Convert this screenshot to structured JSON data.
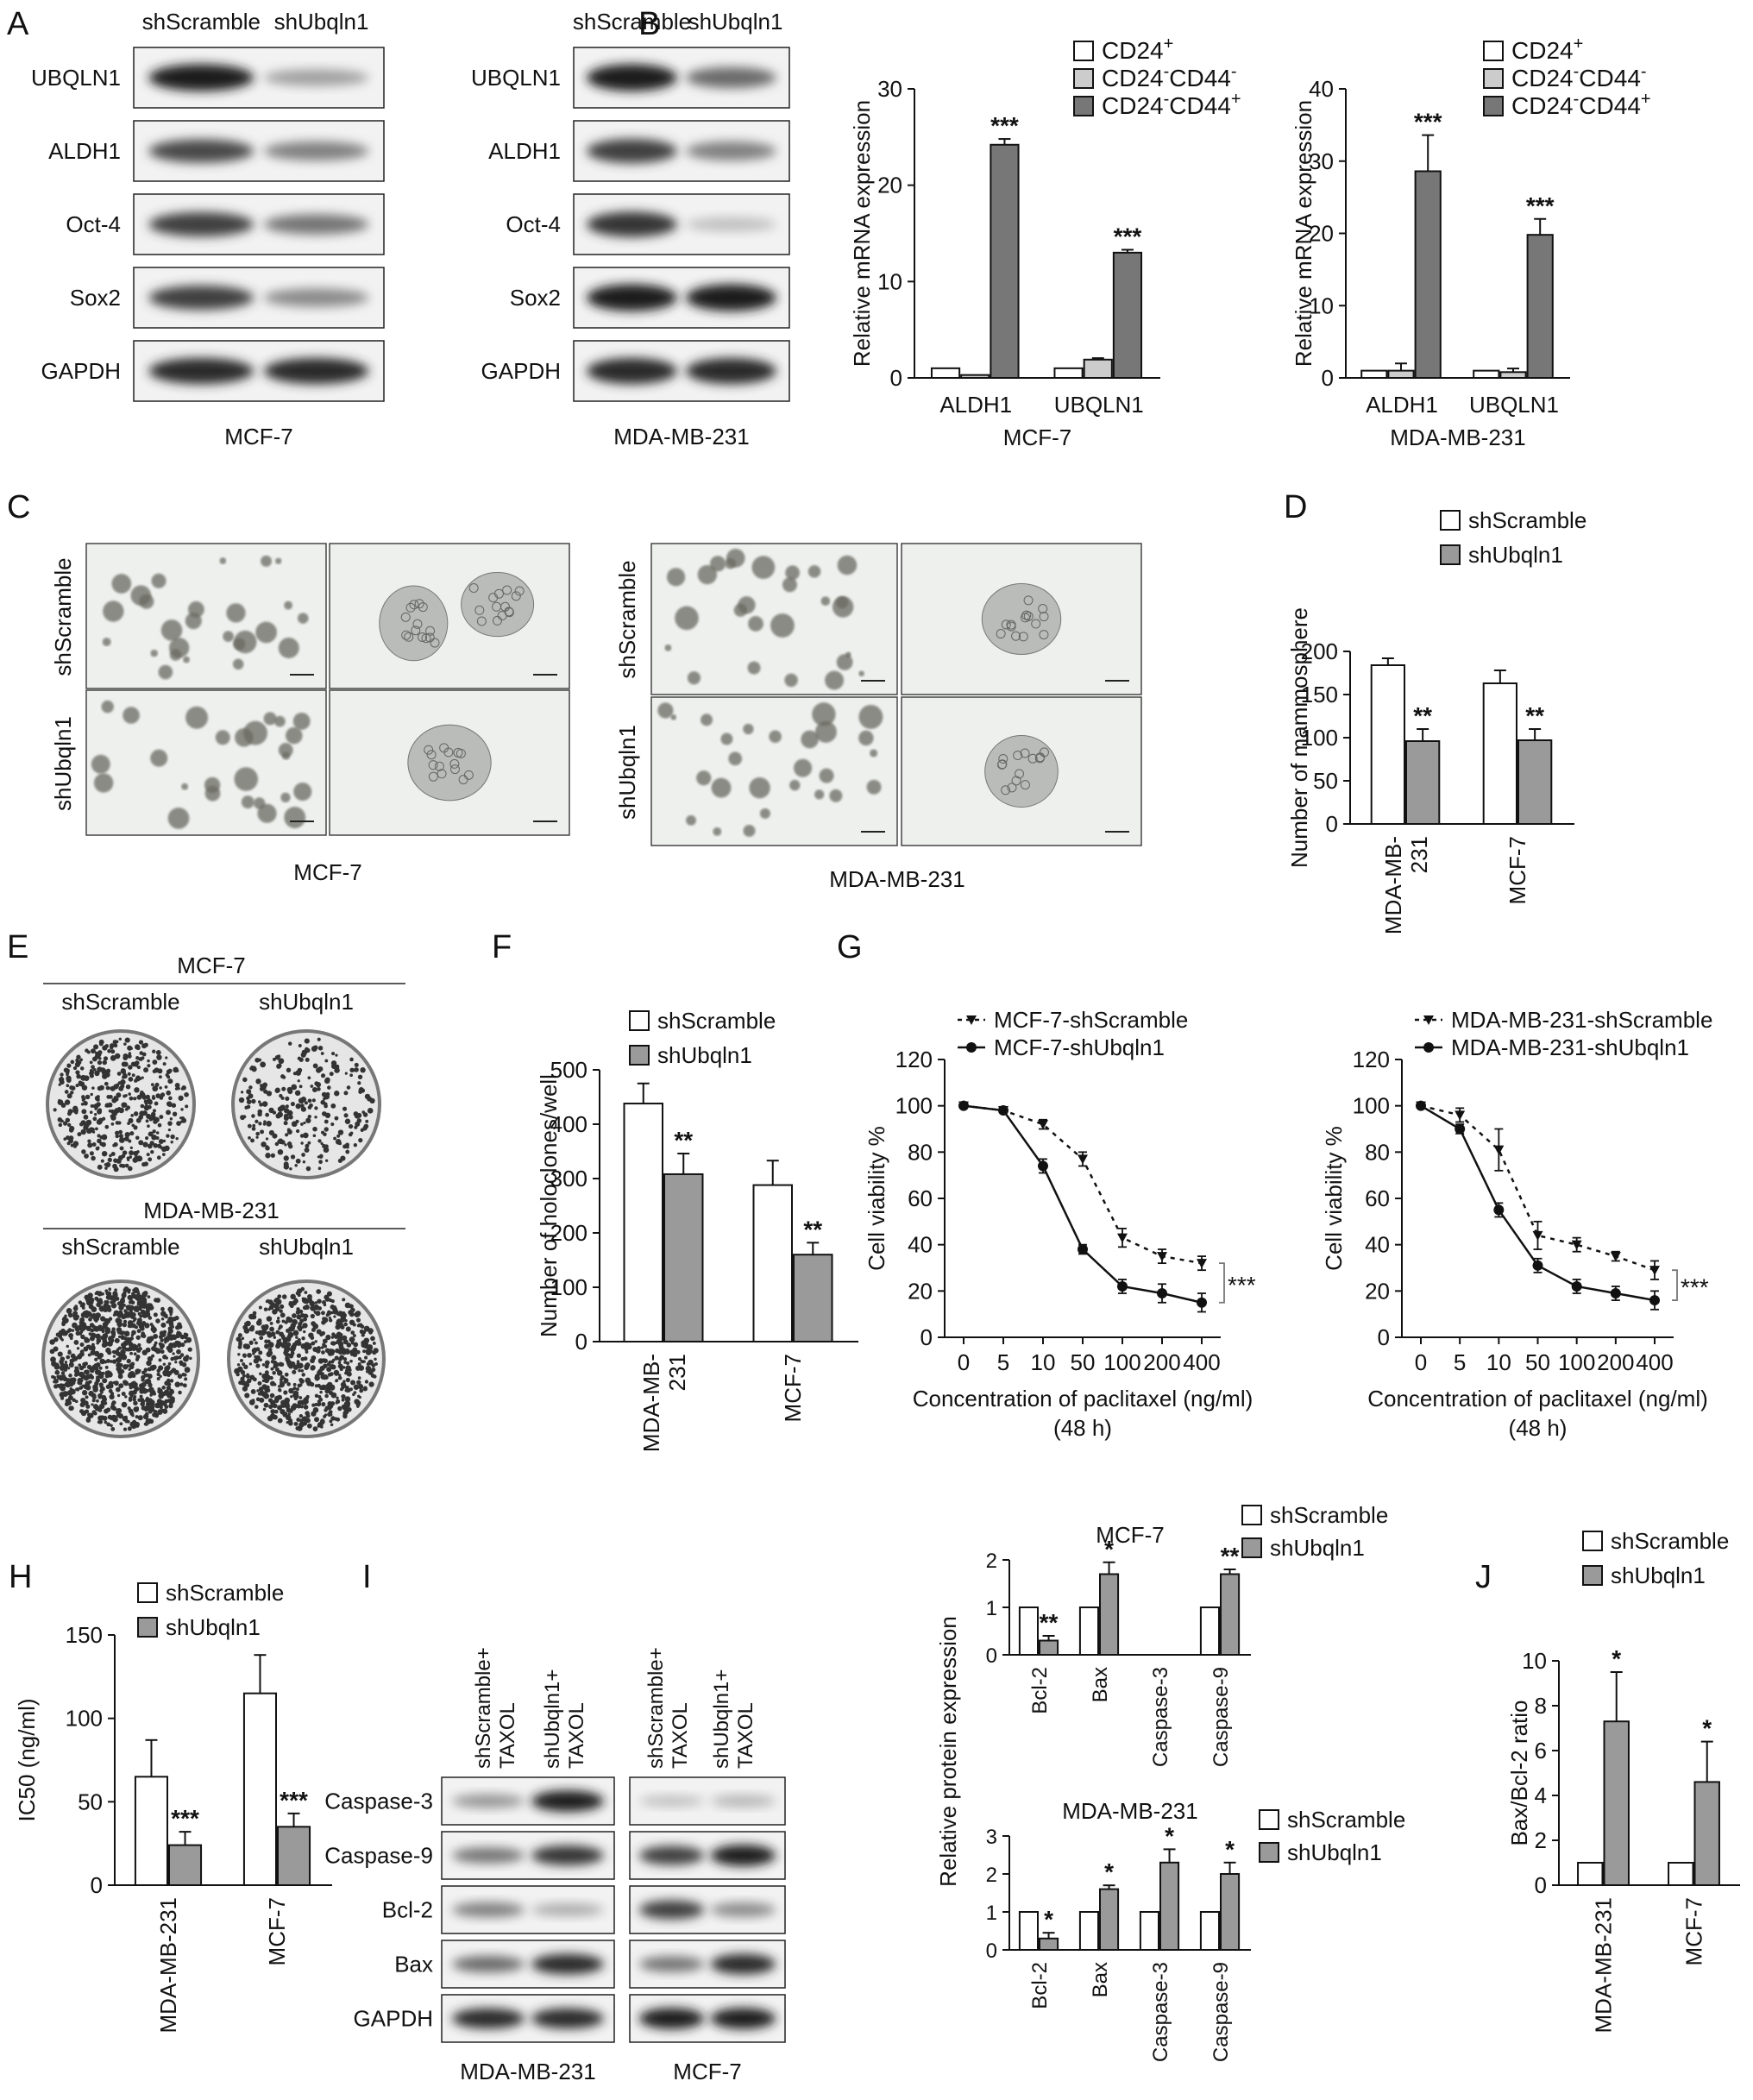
{
  "panel_letters": [
    "A",
    "B",
    "C",
    "D",
    "E",
    "F",
    "G",
    "H",
    "I",
    "J"
  ],
  "panel_A": {
    "lane_labels": [
      "shScramble",
      "shUbqln1"
    ],
    "rows": [
      "UBQLN1",
      "ALDH1",
      "Oct-4",
      "Sox2",
      "GAPDH"
    ],
    "blots": [
      {
        "cell_line": "MCF-7",
        "row_intensity": [
          [
            0.95,
            0.35
          ],
          [
            0.75,
            0.5
          ],
          [
            0.8,
            0.55
          ],
          [
            0.8,
            0.45
          ],
          [
            0.9,
            0.9
          ]
        ]
      },
      {
        "cell_line": "MDA-MB-231",
        "row_intensity": [
          [
            0.95,
            0.6
          ],
          [
            0.8,
            0.5
          ],
          [
            0.85,
            0.2
          ],
          [
            0.95,
            0.95
          ],
          [
            0.9,
            0.9
          ]
        ]
      }
    ]
  },
  "panel_C": {
    "row_labels": [
      "shScramble",
      "shUbqln1"
    ],
    "cell_lines": [
      "MCF-7",
      "MDA-MB-231"
    ]
  },
  "panel_E": {
    "groups": [
      {
        "title": "MCF-7",
        "lanes": [
          "shScramble",
          "shUbqln1"
        ]
      },
      {
        "title": "MDA-MB-231",
        "lanes": [
          "shScramble",
          "shUbqln1"
        ]
      }
    ]
  },
  "panel_I": {
    "lane_labels": [
      "shScramble+ TAXOL",
      "shUbqln1+ TAXOL",
      "shScramble+ TAXOL",
      "shUbqln1+ TAXOL"
    ],
    "rows": [
      "Caspase-3",
      "Caspase-9",
      "Bcl-2",
      "Bax",
      "GAPDH"
    ],
    "blots": [
      {
        "cell_line": "MDA-MB-231",
        "row_intensity": [
          [
            0.4,
            0.95
          ],
          [
            0.55,
            0.85
          ],
          [
            0.5,
            0.3
          ],
          [
            0.6,
            0.9
          ],
          [
            0.9,
            0.9
          ]
        ]
      },
      {
        "cell_line": "MCF-7",
        "row_intensity": [
          [
            0.2,
            0.25
          ],
          [
            0.8,
            0.95
          ],
          [
            0.8,
            0.45
          ],
          [
            0.55,
            0.9
          ],
          [
            0.95,
            0.95
          ]
        ]
      }
    ]
  },
  "chart_data": [
    {
      "id": "B1",
      "type": "bar",
      "panel": "B",
      "categories": [
        "ALDH1",
        "UBQLN1"
      ],
      "xlabel": "MCF-7",
      "ylabel": "Relative mRNA expression",
      "ylim": [
        0,
        30
      ],
      "yticks": [
        0,
        10,
        20,
        30
      ],
      "series": [
        {
          "name": "CD24⁺",
          "color": "#ffffff",
          "values": [
            1,
            1
          ],
          "errors": [
            0,
            0
          ]
        },
        {
          "name": "CD24⁻CD44⁻",
          "color": "#cccccc",
          "values": [
            0.3,
            1.9
          ],
          "errors": [
            0,
            0.15
          ]
        },
        {
          "name": "CD24⁻CD44⁺",
          "color": "#777777",
          "values": [
            24.2,
            13
          ],
          "errors": [
            0.6,
            0.3
          ]
        }
      ],
      "annotations": [
        {
          "category": 1,
          "series": 2,
          "text": "***"
        },
        {
          "category": 0,
          "series": 2,
          "text": "***"
        }
      ]
    },
    {
      "id": "B2",
      "type": "bar",
      "panel": "B",
      "categories": [
        "ALDH1",
        "UBQLN1"
      ],
      "xlabel": "MDA-MB-231",
      "ylabel": "Relative mRNA expression",
      "ylim": [
        0,
        40
      ],
      "yticks": [
        0,
        10,
        20,
        30,
        40
      ],
      "series": [
        {
          "name": "CD24⁺",
          "color": "#ffffff",
          "values": [
            1,
            1
          ],
          "errors": [
            0,
            0
          ]
        },
        {
          "name": "CD24⁻CD44⁻",
          "color": "#cccccc",
          "values": [
            1,
            0.8
          ],
          "errors": [
            1,
            0.5
          ]
        },
        {
          "name": "CD24⁻CD44⁺",
          "color": "#777777",
          "values": [
            28.6,
            19.8
          ],
          "errors": [
            5,
            2.2
          ]
        }
      ],
      "annotations": [
        {
          "category": 0,
          "series": 2,
          "text": "***"
        },
        {
          "category": 1,
          "series": 2,
          "text": "***"
        }
      ]
    },
    {
      "id": "D",
      "type": "bar",
      "panel": "D",
      "categories": [
        "MDA-MB- 231",
        "MCF-7"
      ],
      "ylabel": "Number of mammosphere",
      "ylim": [
        0,
        200
      ],
      "yticks": [
        0,
        50,
        100,
        150,
        200
      ],
      "series": [
        {
          "name": "shScramble",
          "color": "#ffffff",
          "values": [
            184,
            163
          ],
          "errors": [
            8,
            15
          ]
        },
        {
          "name": "shUbqln1",
          "color": "#9a9a9a",
          "values": [
            96,
            97
          ],
          "errors": [
            14,
            13
          ]
        }
      ],
      "annotations": [
        {
          "category": 0,
          "series": 1,
          "text": "**"
        },
        {
          "category": 1,
          "series": 1,
          "text": "**"
        }
      ]
    },
    {
      "id": "F",
      "type": "bar",
      "panel": "F",
      "categories": [
        "MDA-MB- 231",
        "MCF-7"
      ],
      "ylabel": "Number of holoclones/well",
      "ylim": [
        0,
        500
      ],
      "yticks": [
        0,
        100,
        200,
        300,
        400,
        500
      ],
      "series": [
        {
          "name": "shScramble",
          "color": "#ffffff",
          "values": [
            438,
            288
          ],
          "errors": [
            37,
            45
          ]
        },
        {
          "name": "shUbqln1",
          "color": "#9a9a9a",
          "values": [
            308,
            160
          ],
          "errors": [
            38,
            22
          ]
        }
      ],
      "annotations": [
        {
          "category": 0,
          "series": 1,
          "text": "**"
        },
        {
          "category": 1,
          "series": 1,
          "text": "**"
        }
      ]
    },
    {
      "id": "G1",
      "type": "line",
      "panel": "G",
      "x": [
        "0",
        "5",
        "10",
        "50",
        "100",
        "200",
        "400"
      ],
      "xlabel": "Concentration of paclitaxel (ng/ml)",
      "xlabel2": "(48 h)",
      "ylabel": "Cell viability %",
      "ylim": [
        0,
        120
      ],
      "yticks": [
        0,
        20,
        40,
        60,
        80,
        100,
        120
      ],
      "series": [
        {
          "name": "MCF-7-shScramble",
          "dash": true,
          "marker": "tri",
          "values": [
            100,
            98,
            92,
            77,
            43,
            35,
            32
          ],
          "errors": [
            0,
            1,
            2,
            3,
            4,
            3,
            3
          ]
        },
        {
          "name": "MCF-7-shUbqln1",
          "dash": false,
          "marker": "dot",
          "values": [
            100,
            98,
            74,
            38,
            22,
            19,
            15
          ],
          "errors": [
            0,
            1,
            3,
            2,
            3,
            4,
            4
          ]
        }
      ],
      "significance": "***"
    },
    {
      "id": "G2",
      "type": "line",
      "panel": "G",
      "x": [
        "0",
        "5",
        "10",
        "50",
        "100",
        "200",
        "400"
      ],
      "xlabel": "Concentration of paclitaxel (ng/ml)",
      "xlabel2": "(48 h)",
      "ylabel": "Cell viability %",
      "ylim": [
        0,
        120
      ],
      "yticks": [
        0,
        20,
        40,
        60,
        80,
        100,
        120
      ],
      "series": [
        {
          "name": "MDA-MB-231-shScramble",
          "dash": true,
          "marker": "tri",
          "values": [
            100,
            96,
            81,
            44,
            40,
            35,
            29
          ],
          "errors": [
            0,
            3,
            9,
            6,
            3,
            2,
            4
          ]
        },
        {
          "name": "MDA-MB-231-shUbqln1",
          "dash": false,
          "marker": "dot",
          "values": [
            100,
            90,
            55,
            31,
            22,
            19,
            16
          ],
          "errors": [
            0,
            2,
            3,
            3,
            3,
            3,
            4
          ]
        }
      ],
      "significance": "***"
    },
    {
      "id": "H",
      "type": "bar",
      "panel": "H",
      "categories": [
        "MDA-MB-231",
        "MCF-7"
      ],
      "ylabel": "IC50 (ng/ml)",
      "ylim": [
        0,
        150
      ],
      "yticks": [
        0,
        50,
        100,
        150
      ],
      "series": [
        {
          "name": "shScramble",
          "color": "#ffffff",
          "values": [
            65,
            115
          ],
          "errors": [
            22,
            23
          ]
        },
        {
          "name": "shUbqln1",
          "color": "#9a9a9a",
          "values": [
            24,
            35
          ],
          "errors": [
            8,
            8
          ]
        }
      ],
      "annotations": [
        {
          "category": 0,
          "series": 1,
          "text": "***"
        },
        {
          "category": 1,
          "series": 1,
          "text": "***"
        }
      ]
    },
    {
      "id": "I1",
      "type": "bar",
      "panel": "I",
      "title": "MCF-7",
      "categories": [
        "Bcl-2",
        "Bax",
        "Caspase-3",
        "Caspase-9"
      ],
      "ylim": [
        0,
        2
      ],
      "yticks": [
        0,
        1,
        2
      ],
      "series": [
        {
          "name": "shScramble",
          "color": "#ffffff",
          "values": [
            1,
            1,
            null,
            1
          ],
          "errors": [
            0,
            0,
            0,
            0
          ]
        },
        {
          "name": "shUbqln1",
          "color": "#9a9a9a",
          "values": [
            0.3,
            1.7,
            null,
            1.7
          ],
          "errors": [
            0.1,
            0.25,
            0,
            0.1
          ]
        }
      ],
      "annotations": [
        {
          "category": 0,
          "series": 1,
          "text": "**"
        },
        {
          "category": 1,
          "series": 1,
          "text": "*"
        },
        {
          "category": 3,
          "series": 1,
          "text": "**"
        }
      ]
    },
    {
      "id": "I2",
      "type": "bar",
      "panel": "I",
      "title": "MDA-MB-231",
      "categories": [
        "Bcl-2",
        "Bax",
        "Caspase-3",
        "Caspase-9"
      ],
      "ylim": [
        0,
        3
      ],
      "yticks": [
        0,
        1,
        2,
        3
      ],
      "series": [
        {
          "name": "shScramble",
          "color": "#ffffff",
          "values": [
            1,
            1,
            1,
            1
          ],
          "errors": [
            0,
            0,
            0,
            0
          ]
        },
        {
          "name": "shUbqln1",
          "color": "#9a9a9a",
          "values": [
            0.3,
            1.6,
            2.3,
            2.0
          ],
          "errors": [
            0.15,
            0.1,
            0.35,
            0.3
          ]
        }
      ],
      "annotations": [
        {
          "category": 0,
          "series": 1,
          "text": "*"
        },
        {
          "category": 1,
          "series": 1,
          "text": "*"
        },
        {
          "category": 2,
          "series": 1,
          "text": "*"
        },
        {
          "category": 3,
          "series": 1,
          "text": "*"
        }
      ]
    },
    {
      "id": "J",
      "type": "bar",
      "panel": "J",
      "categories": [
        "MDA-MB-231",
        "MCF-7"
      ],
      "ylabel": "Bax/Bcl-2 ratio",
      "ylim": [
        0,
        10
      ],
      "yticks": [
        0,
        2,
        4,
        6,
        8,
        10
      ],
      "series": [
        {
          "name": "shScramble",
          "color": "#ffffff",
          "values": [
            1,
            1
          ],
          "errors": [
            0,
            0
          ]
        },
        {
          "name": "shUbqln1",
          "color": "#9a9a9a",
          "values": [
            7.3,
            4.6
          ],
          "errors": [
            2.2,
            1.8
          ]
        }
      ],
      "annotations": [
        {
          "category": 0,
          "series": 1,
          "text": "*"
        },
        {
          "category": 1,
          "series": 1,
          "text": "*"
        }
      ]
    }
  ],
  "shared_ylabel_I": "Relative protein expression"
}
